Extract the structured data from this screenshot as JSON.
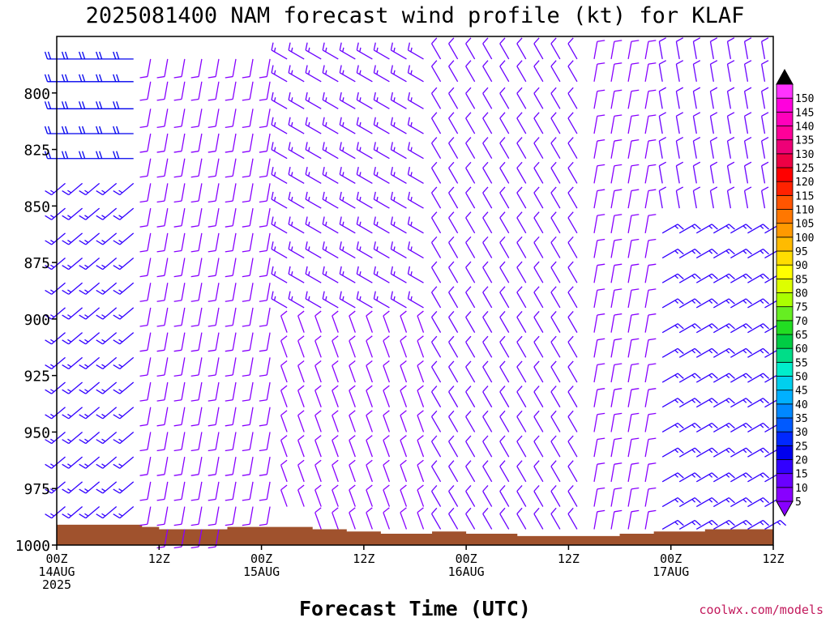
{
  "title": "2025081400 NAM forecast wind profile (kt) for KLAF",
  "xlabel": "Forecast Time (UTC)",
  "credit": "coolwx.com/models",
  "colorbar": {
    "labels": [
      "5",
      "10",
      "15",
      "20",
      "25",
      "30",
      "35",
      "40",
      "45",
      "50",
      "55",
      "60",
      "65",
      "70",
      "75",
      "80",
      "85",
      "90",
      "95",
      "100",
      "105",
      "110",
      "115",
      "120",
      "125",
      "130",
      "135",
      "140",
      "145",
      "150"
    ],
    "colors": [
      "#8800ff",
      "#6a00ff",
      "#3200ff",
      "#0000ee",
      "#0028ff",
      "#005aff",
      "#0088ff",
      "#00b0ff",
      "#00d0ee",
      "#00eecc",
      "#00dd88",
      "#00cc44",
      "#22dd22",
      "#66ee22",
      "#aaff00",
      "#ddff00",
      "#ffff00",
      "#ffdd00",
      "#ffbb00",
      "#ff9900",
      "#ff7700",
      "#ff5500",
      "#ff2200",
      "#ff0000",
      "#ee0044",
      "#ee0077",
      "#ff0099",
      "#ff00bb",
      "#ff00dd",
      "#ff33ff"
    ],
    "top_color": "#000000",
    "bottom_color": "#8800ff"
  },
  "chart_data": {
    "type": "wind-barb time-height profile",
    "title": "2025081400 NAM forecast wind profile (kt) for KLAF",
    "xlabel": "Forecast Time (UTC)",
    "ylabel": "",
    "y_ticks": [
      800,
      825,
      850,
      875,
      900,
      925,
      950,
      975,
      1000
    ],
    "ylim": [
      1000,
      775
    ],
    "x_ticks": [
      {
        "hour": 0,
        "line1": "00Z",
        "line2": "14AUG",
        "line3": "2025"
      },
      {
        "hour": 12,
        "line1": "12Z",
        "line2": "",
        "line3": ""
      },
      {
        "hour": 24,
        "line1": "00Z",
        "line2": "15AUG",
        "line3": ""
      },
      {
        "hour": 36,
        "line1": "12Z",
        "line2": "",
        "line3": ""
      },
      {
        "hour": 48,
        "line1": "00Z",
        "line2": "16AUG",
        "line3": ""
      },
      {
        "hour": 60,
        "line1": "12Z",
        "line2": "",
        "line3": ""
      },
      {
        "hour": 72,
        "line1": "00Z",
        "line2": "17AUG",
        "line3": ""
      },
      {
        "hour": 84,
        "line1": "12Z",
        "line2": "",
        "line3": ""
      }
    ],
    "xlim": [
      0,
      84
    ],
    "wind_speed_units": "kt",
    "barb_levels": [
      785,
      795,
      807,
      818,
      829,
      840,
      851,
      862,
      873,
      884,
      895,
      906,
      917,
      928,
      939,
      950,
      961,
      972,
      983,
      993
    ],
    "barb_hours": [
      1,
      3,
      5,
      7,
      9,
      11,
      13,
      15,
      17,
      19,
      21,
      23,
      25,
      27,
      29,
      31,
      33,
      35,
      37,
      39,
      41,
      43,
      45,
      47,
      49,
      51,
      53,
      55,
      57,
      59,
      61,
      63,
      65,
      67,
      69,
      71,
      73,
      75,
      77,
      79,
      81,
      83
    ],
    "surface_pressure": [
      {
        "hour": 0,
        "p": 991
      },
      {
        "hour": 10,
        "p": 992
      },
      {
        "hour": 12,
        "p": 993
      },
      {
        "hour": 18,
        "p": 993
      },
      {
        "hour": 20,
        "p": 992
      },
      {
        "hour": 26,
        "p": 992
      },
      {
        "hour": 30,
        "p": 993
      },
      {
        "hour": 34,
        "p": 994
      },
      {
        "hour": 38,
        "p": 995
      },
      {
        "hour": 44,
        "p": 994
      },
      {
        "hour": 48,
        "p": 995
      },
      {
        "hour": 54,
        "p": 996
      },
      {
        "hour": 60,
        "p": 996
      },
      {
        "hour": 66,
        "p": 995
      },
      {
        "hour": 70,
        "p": 994
      },
      {
        "hour": 76,
        "p": 993
      },
      {
        "hour": 80,
        "p": 993
      },
      {
        "hour": 84,
        "p": 994
      }
    ],
    "wind_regimes": [
      {
        "hours": [
          0,
          10
        ],
        "levels": [
          775,
          830
        ],
        "direction_deg": 270,
        "speed_kt": 22
      },
      {
        "hours": [
          0,
          10
        ],
        "levels": [
          830,
          1000
        ],
        "direction_deg": 230,
        "speed_kt": 16
      },
      {
        "hours": [
          10,
          26
        ],
        "levels": [
          775,
          1000
        ],
        "direction_deg": 190,
        "speed_kt": 9
      },
      {
        "hours": [
          26,
          44
        ],
        "levels": [
          775,
          900
        ],
        "direction_deg": 300,
        "speed_kt": 13
      },
      {
        "hours": [
          26,
          44
        ],
        "levels": [
          900,
          1000
        ],
        "direction_deg": 340,
        "speed_kt": 9
      },
      {
        "hours": [
          44,
          62
        ],
        "levels": [
          775,
          1000
        ],
        "direction_deg": 330,
        "speed_kt": 12
      },
      {
        "hours": [
          62,
          70
        ],
        "levels": [
          775,
          1000
        ],
        "direction_deg": 10,
        "speed_kt": 8
      },
      {
        "hours": [
          70,
          84
        ],
        "levels": [
          775,
          860
        ],
        "direction_deg": 350,
        "speed_kt": 10
      },
      {
        "hours": [
          70,
          84
        ],
        "levels": [
          860,
          1000
        ],
        "direction_deg": 60,
        "speed_kt": 17
      }
    ]
  }
}
